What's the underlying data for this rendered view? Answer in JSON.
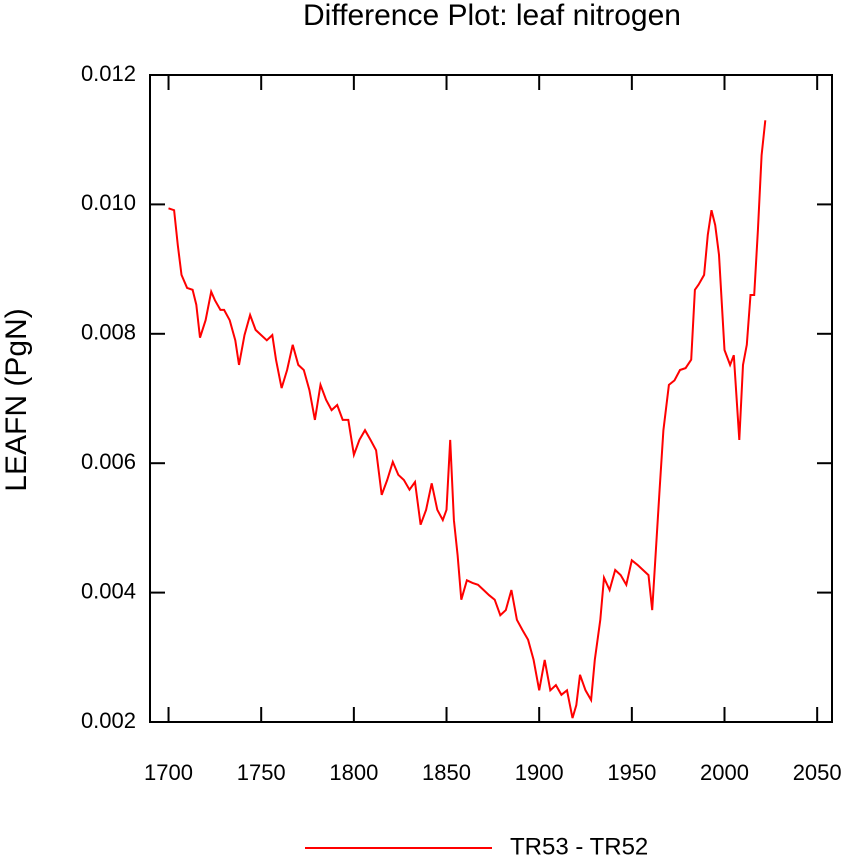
{
  "chart_data": {
    "type": "line",
    "title": "Difference Plot: leaf nitrogen",
    "y_label": "LEAFN  (PgN)",
    "x": [
      1700,
      1703,
      1705,
      1707,
      1710,
      1713,
      1715,
      1717,
      1720,
      1723,
      1725,
      1728,
      1730,
      1733,
      1736,
      1738,
      1741,
      1744,
      1747,
      1750,
      1753,
      1756,
      1758,
      1761,
      1764,
      1767,
      1770,
      1773,
      1776,
      1779,
      1782,
      1785,
      1788,
      1791,
      1794,
      1797,
      1800,
      1803,
      1806,
      1809,
      1812,
      1815,
      1818,
      1821,
      1824,
      1827,
      1830,
      1833,
      1836,
      1839,
      1842,
      1845,
      1848,
      1850,
      1852,
      1854,
      1856,
      1858,
      1861,
      1864,
      1867,
      1870,
      1873,
      1876,
      1879,
      1882,
      1885,
      1888,
      1891,
      1894,
      1897,
      1900,
      1903,
      1906,
      1909,
      1912,
      1915,
      1918,
      1920,
      1922,
      1925,
      1928,
      1930,
      1933,
      1935,
      1938,
      1941,
      1944,
      1947,
      1950,
      1953,
      1956,
      1959,
      1961,
      1963,
      1965,
      1967,
      1970,
      1973,
      1976,
      1979,
      1982,
      1984,
      1986,
      1989,
      1991,
      1993,
      1995,
      1997,
      2000,
      2003,
      2005,
      2008,
      2010,
      2012,
      2014,
      2016,
      2018,
      2020,
      2022
    ],
    "series": [
      {
        "name": "TR53 - TR52",
        "color": "#ff0000",
        "values": [
          0.00994,
          0.00991,
          0.00937,
          0.00891,
          0.00871,
          0.00868,
          0.00845,
          0.00794,
          0.00821,
          0.00865,
          0.00852,
          0.00837,
          0.00837,
          0.00821,
          0.0079,
          0.00752,
          0.00798,
          0.00829,
          0.00806,
          0.00798,
          0.0079,
          0.00798,
          0.0076,
          0.00716,
          0.00744,
          0.00783,
          0.00752,
          0.00744,
          0.00713,
          0.00667,
          0.00721,
          0.00698,
          0.00682,
          0.0069,
          0.00667,
          0.00667,
          0.00613,
          0.00636,
          0.00651,
          0.00636,
          0.0062,
          0.00551,
          0.00574,
          0.00602,
          0.00582,
          0.00574,
          0.00559,
          0.00571,
          0.00505,
          0.00528,
          0.00569,
          0.00528,
          0.00512,
          0.00528,
          0.00636,
          0.00512,
          0.00458,
          0.00389,
          0.00419,
          0.00415,
          0.00412,
          0.00404,
          0.00396,
          0.00389,
          0.00365,
          0.00373,
          0.00404,
          0.00358,
          0.00342,
          0.00327,
          0.00296,
          0.00249,
          0.00296,
          0.00249,
          0.00257,
          0.00242,
          0.00249,
          0.00206,
          0.00226,
          0.00273,
          0.00249,
          0.00234,
          0.00296,
          0.00358,
          0.00423,
          0.00404,
          0.00435,
          0.00427,
          0.00412,
          0.0045,
          0.00443,
          0.00435,
          0.00427,
          0.00373,
          0.00466,
          0.00559,
          0.00651,
          0.00721,
          0.00728,
          0.00744,
          0.00747,
          0.0076,
          0.00868,
          0.00876,
          0.00891,
          0.00953,
          0.00991,
          0.00968,
          0.00922,
          0.00775,
          0.00752,
          0.00767,
          0.00636,
          0.00752,
          0.00783,
          0.0086,
          0.0086,
          0.0096,
          0.01076,
          0.0113
        ]
      }
    ],
    "xlim": [
      1690,
      2058
    ],
    "ylim": [
      0.002,
      0.012
    ],
    "xticks": [
      1700,
      1750,
      1800,
      1850,
      1900,
      1950,
      2000,
      2050
    ],
    "yticks": [
      {
        "value": 0.002,
        "label": "0.002"
      },
      {
        "value": 0.004,
        "label": "0.004"
      },
      {
        "value": 0.006,
        "label": "0.006"
      },
      {
        "value": 0.008,
        "label": "0.008"
      },
      {
        "value": 0.01,
        "label": "0.010"
      },
      {
        "value": 0.012,
        "label": "0.012"
      }
    ],
    "legend": "bottom"
  }
}
